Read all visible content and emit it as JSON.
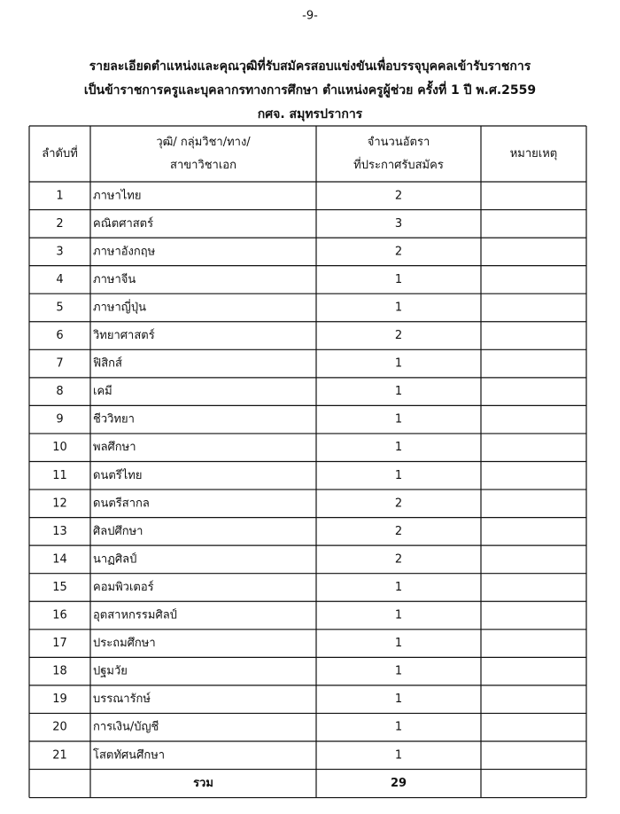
{
  "page_number": "-9-",
  "header": {
    "title_lines": [
      "รายละเอียดตำแหน่งและคุณวุฒิที่รับสมัครสอบแข่งขันเพื่อบรรจุบุคคลเข้ารับราชการ",
      "เป็นข้าราชการครูและบุคลากรทางการศึกษา  ตำแหน่งครูผู้ช่วย  ครั้งที่  1  ปี พ.ศ.2559",
      "กศจ. สมุทรปราการ"
    ]
  },
  "table": {
    "columns": [
      [
        "ลำดับที่"
      ],
      [
        "วุฒิ/ กลุ่มวิชา/ทาง/",
        "สาขาวิชาเอก"
      ],
      [
        "จำนวนอัตรา",
        "ที่ประกาศรับสมัคร"
      ],
      [
        "หมายเหตุ"
      ]
    ],
    "rows": [
      [
        1,
        "ภาษาไทย",
        2
      ],
      [
        2,
        "คณิตศาสตร์",
        3
      ],
      [
        3,
        "ภาษาอังกฤษ",
        2
      ],
      [
        4,
        "ภาษาจีน",
        1
      ],
      [
        5,
        "ภาษาญี่ปุ่น",
        1
      ],
      [
        6,
        "วิทยาศาสตร์",
        2
      ],
      [
        7,
        "ฟิสิกส์",
        1
      ],
      [
        8,
        "เคมี",
        1
      ],
      [
        9,
        "ชีววิทยา",
        1
      ],
      [
        10,
        "พลศึกษา",
        1
      ],
      [
        11,
        "ดนตรีไทย",
        1
      ],
      [
        12,
        "ดนตรีสากล",
        2
      ],
      [
        13,
        "ศิลปศึกษา",
        2
      ],
      [
        14,
        "นาฏศิลป์",
        2
      ],
      [
        15,
        "คอมพิวเตอร์",
        1
      ],
      [
        16,
        "อุตสาหกรรมศิลป์",
        1
      ],
      [
        17,
        "ประถมศึกษา",
        1
      ],
      [
        18,
        "ปฐมวัย",
        1
      ],
      [
        19,
        "บรรณารักษ์",
        1
      ],
      [
        20,
        "การเงิน/บัญชี",
        1
      ],
      [
        21,
        "โสตทัศนศึกษา",
        1
      ]
    ],
    "total": {
      "label": "รวม",
      "value": 29
    }
  }
}
